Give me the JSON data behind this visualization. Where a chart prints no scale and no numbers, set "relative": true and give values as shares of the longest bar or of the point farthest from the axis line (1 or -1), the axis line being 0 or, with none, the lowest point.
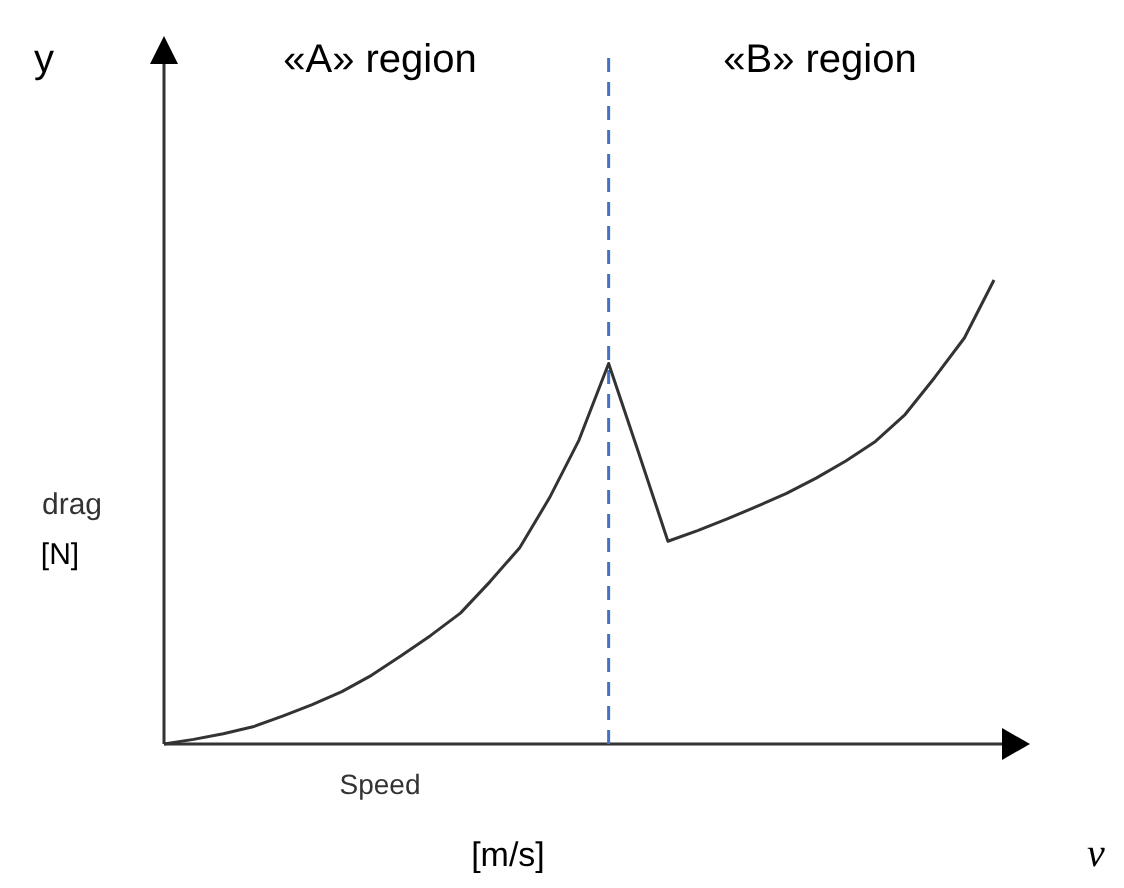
{
  "chart_data": {
    "type": "line",
    "relative": true,
    "xlabel": "Speed",
    "ylabel": "drag",
    "categories": [
      null,
      null,
      null,
      null,
      null,
      null,
      null,
      null,
      null,
      null,
      null,
      null,
      null,
      null,
      null,
      null,
      null,
      null,
      null,
      null,
      null,
      null,
      null,
      null,
      null,
      null,
      null,
      null,
      null
    ],
    "series": [
      {
        "color": "#333333",
        "values": [
          0,
          0.01,
          0.022,
          0.037,
          0.06,
          0.085,
          0.113,
          0.148,
          0.19,
          0.234,
          0.282,
          0.35,
          0.423,
          0.53,
          0.655,
          0.82,
          0.63,
          0.437,
          0.46,
          0.485,
          0.512,
          0.54,
          0.573,
          0.61,
          0.652,
          0.71,
          0.79,
          0.875,
          1
        ]
      }
    ],
    "ref_lines": [
      {
        "axis": "x",
        "color": "#4472c4",
        "line_style": "dashed"
      }
    ],
    "annotations": [
      "y",
      "«A» region",
      "«B» region",
      "[N]",
      "[m/s]",
      "v"
    ],
    "marker": "none",
    "line_style": "solid"
  }
}
